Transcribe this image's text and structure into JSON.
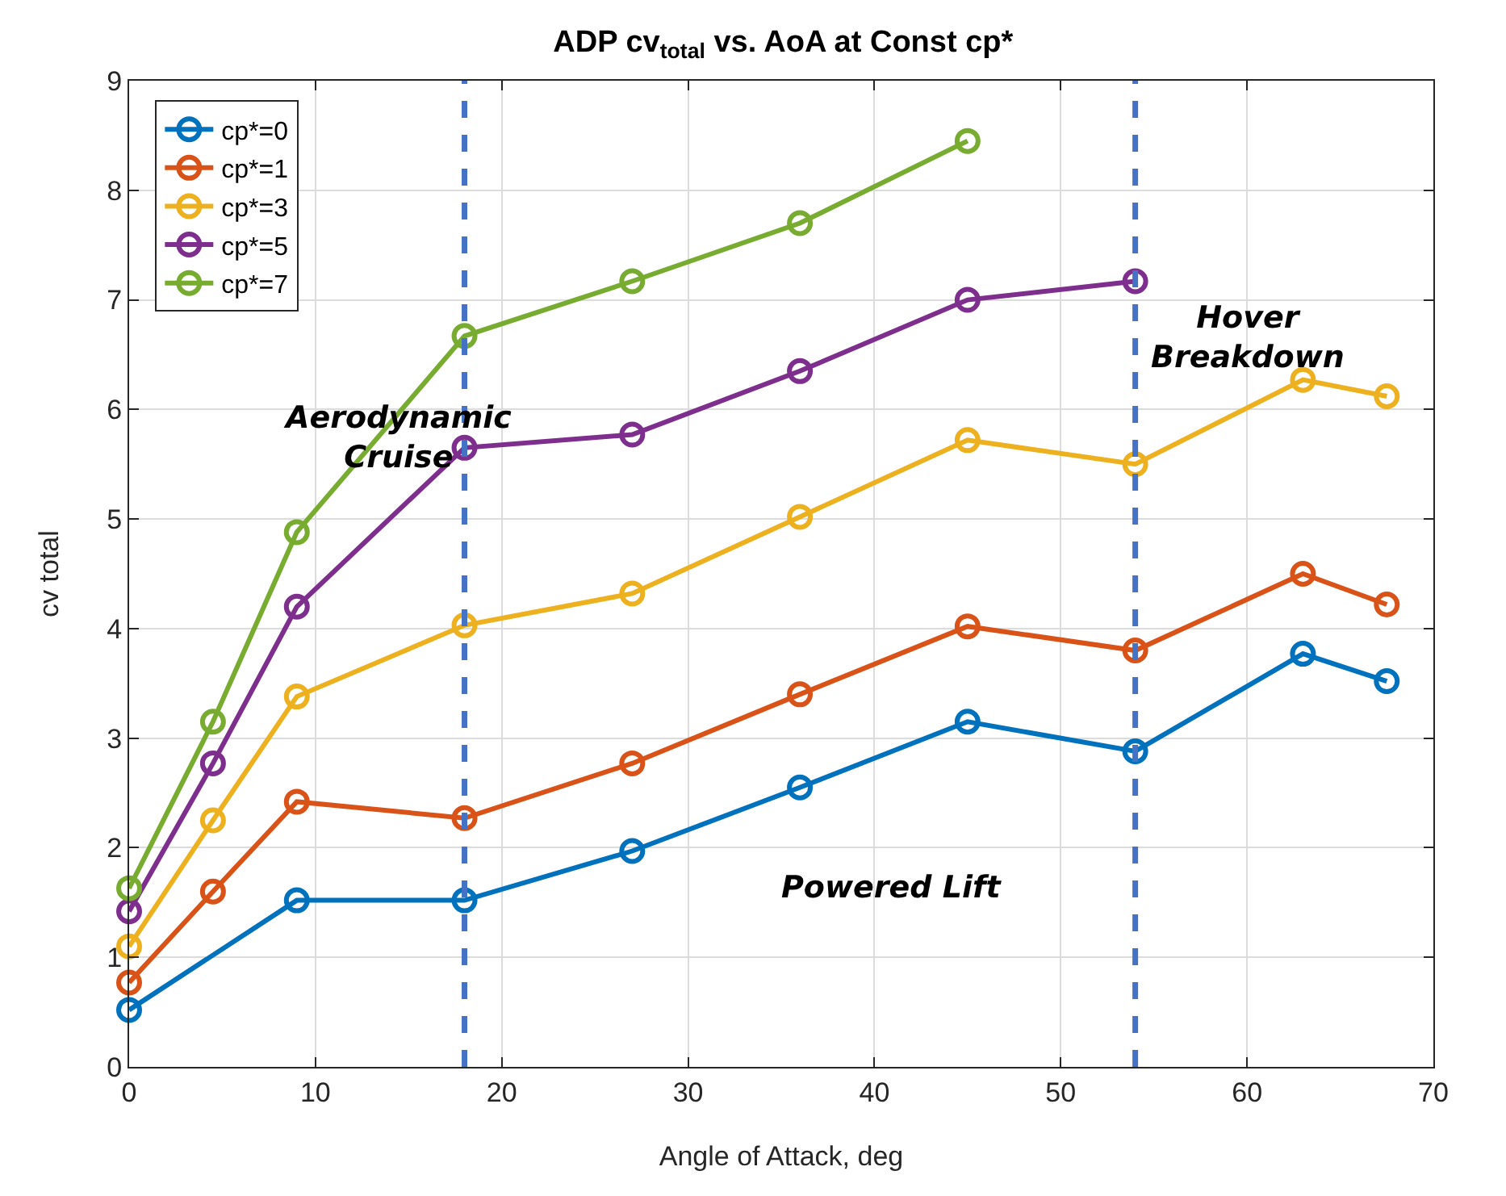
{
  "chart_data": {
    "type": "line",
    "title": "ADP cv$_{total}$ vs. AoA at Const cp*",
    "xlabel": "Angle of Attack, deg",
    "ylabel": "cv total",
    "x": [
      0,
      4.5,
      9,
      18,
      27,
      36,
      45,
      54,
      63,
      67.5
    ],
    "series": [
      {
        "name": "cp*=0",
        "color": "#0072bd",
        "x": [
          0,
          9,
          18,
          27,
          36,
          45,
          54,
          63,
          67.5
        ],
        "values": [
          0.52,
          1.52,
          1.52,
          1.97,
          2.55,
          3.15,
          2.88,
          3.77,
          3.52
        ]
      },
      {
        "name": "cp*=1",
        "color": "#d95319",
        "values": [
          0.77,
          1.6,
          2.42,
          2.27,
          2.77,
          3.4,
          4.02,
          3.8,
          4.5,
          4.22
        ]
      },
      {
        "name": "cp*=3",
        "color": "#edb120",
        "values": [
          1.1,
          2.25,
          3.38,
          4.03,
          4.32,
          5.02,
          5.72,
          5.5,
          6.27,
          6.12
        ]
      },
      {
        "name": "cp*=5",
        "color": "#7e2f8e",
        "x": [
          0,
          4.5,
          9,
          18,
          27,
          36,
          45,
          54
        ],
        "values": [
          1.42,
          2.77,
          4.2,
          5.65,
          5.77,
          6.35,
          7.0,
          7.17
        ]
      },
      {
        "name": "cp*=7",
        "color": "#77ac30",
        "x": [
          0,
          4.5,
          9,
          18,
          27,
          36,
          45
        ],
        "values": [
          1.63,
          3.15,
          4.88,
          6.67,
          7.17,
          7.7,
          8.45
        ]
      }
    ],
    "xlim": [
      0,
      70
    ],
    "xticks": [
      0,
      10,
      20,
      30,
      40,
      50,
      60,
      70
    ],
    "ylim": [
      0,
      9
    ],
    "yticks": [
      0,
      1,
      2,
      3,
      4,
      5,
      6,
      7,
      8,
      9
    ],
    "ref_lines": [
      {
        "axis": "x",
        "value": 18,
        "color": "#4472c4",
        "line_style": "dashed"
      },
      {
        "axis": "x",
        "value": 54,
        "color": "#4472c4",
        "line_style": "dashed"
      }
    ],
    "annotations": [
      "Aerodynamic\nCruise",
      "Powered Lift",
      "Hover\nBreakdown"
    ],
    "grid": true,
    "legend": "top left",
    "marker": "circle",
    "line_style": "solid"
  }
}
